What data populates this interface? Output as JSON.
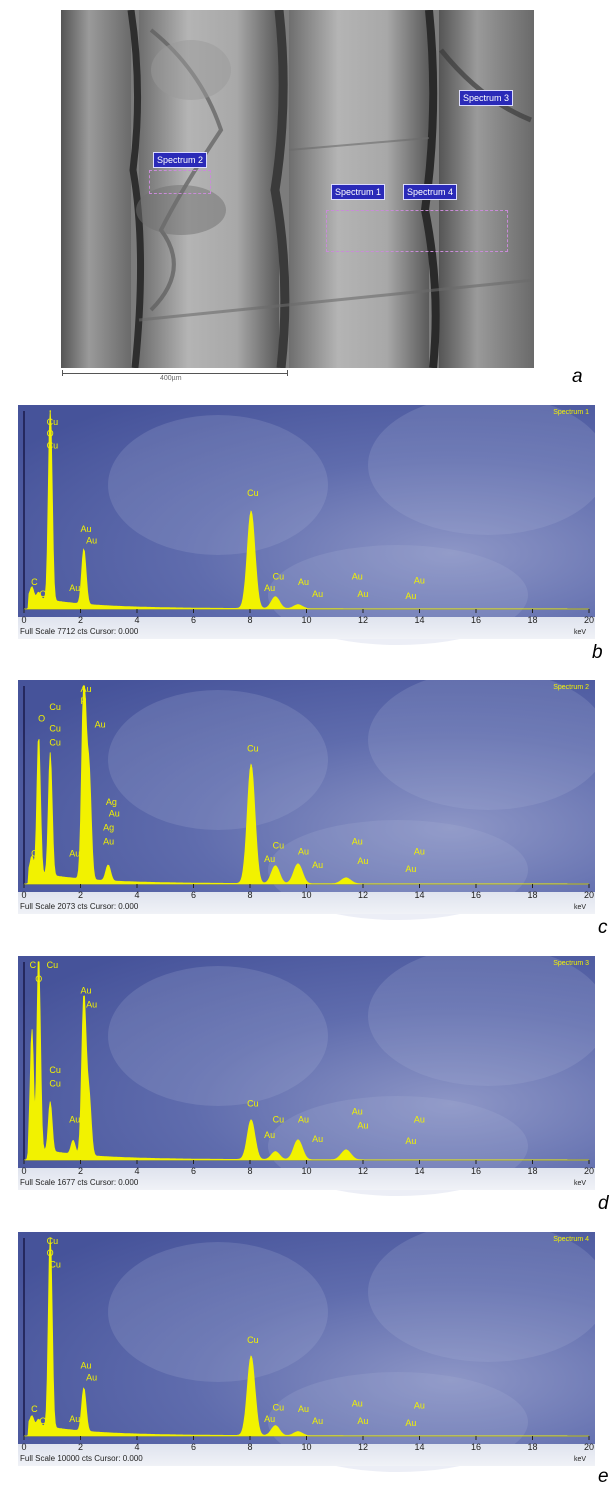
{
  "sem": {
    "labels": [
      "Spectrum 1",
      "Spectrum 2",
      "Spectrum 3",
      "Spectrum 4"
    ],
    "scale_label": "400µm",
    "panel": "a"
  },
  "chart_data": [
    {
      "type": "line",
      "panel": "b",
      "title": "Spectrum 1",
      "xlabel": "keV",
      "xlim": [
        0,
        20
      ],
      "x_ticks": [
        "0",
        "2",
        "4",
        "6",
        "8",
        "10",
        "12",
        "14",
        "16",
        "18",
        "20"
      ],
      "footer": "Full Scale 7712 cts Cursor: 0.000",
      "peaks": [
        {
          "x": 0.28,
          "y": 0.05
        },
        {
          "x": 0.52,
          "y": 0.03
        },
        {
          "x": 0.93,
          "y": 1.0
        },
        {
          "x": 2.12,
          "y": 0.28
        },
        {
          "x": 8.04,
          "y": 0.49
        },
        {
          "x": 8.9,
          "y": 0.06
        },
        {
          "x": 9.7,
          "y": 0.02
        }
      ],
      "annotations": [
        {
          "x": 0.8,
          "y": 0.93,
          "text": "Cu"
        },
        {
          "x": 0.8,
          "y": 0.87,
          "text": "O"
        },
        {
          "x": 0.8,
          "y": 0.81,
          "text": "Cu"
        },
        {
          "x": 2.0,
          "y": 0.39,
          "text": "Au"
        },
        {
          "x": 2.2,
          "y": 0.33,
          "text": "Au"
        },
        {
          "x": 1.6,
          "y": 0.09,
          "text": "Au"
        },
        {
          "x": 0.25,
          "y": 0.12,
          "text": "C"
        },
        {
          "x": 0.55,
          "y": 0.06,
          "text": "O"
        },
        {
          "x": 7.9,
          "y": 0.57,
          "text": "Cu"
        },
        {
          "x": 8.8,
          "y": 0.15,
          "text": "Cu"
        },
        {
          "x": 8.5,
          "y": 0.09,
          "text": "Au"
        },
        {
          "x": 9.7,
          "y": 0.12,
          "text": "Au"
        },
        {
          "x": 10.2,
          "y": 0.06,
          "text": "Au"
        },
        {
          "x": 11.6,
          "y": 0.15,
          "text": "Au"
        },
        {
          "x": 11.8,
          "y": 0.06,
          "text": "Au"
        },
        {
          "x": 13.8,
          "y": 0.13,
          "text": "Au"
        },
        {
          "x": 13.5,
          "y": 0.05,
          "text": "Au"
        }
      ]
    },
    {
      "type": "line",
      "panel": "c",
      "title": "Spectrum 2",
      "xlabel": "keV",
      "xlim": [
        0,
        20
      ],
      "x_ticks": [
        "0",
        "2",
        "4",
        "6",
        "8",
        "10",
        "12",
        "14",
        "16",
        "18",
        "20"
      ],
      "footer": "Full Scale 2073 cts Cursor: 0.000",
      "peaks": [
        {
          "x": 0.28,
          "y": 0.08
        },
        {
          "x": 0.52,
          "y": 0.7
        },
        {
          "x": 0.93,
          "y": 0.62
        },
        {
          "x": 2.12,
          "y": 1.0
        },
        {
          "x": 2.3,
          "y": 0.55
        },
        {
          "x": 2.98,
          "y": 0.08
        },
        {
          "x": 8.04,
          "y": 0.6
        },
        {
          "x": 8.9,
          "y": 0.09
        },
        {
          "x": 9.7,
          "y": 0.1
        },
        {
          "x": 11.4,
          "y": 0.03
        }
      ],
      "annotations": [
        {
          "x": 2.0,
          "y": 0.97,
          "text": "Au"
        },
        {
          "x": 2.0,
          "y": 0.91,
          "text": "P"
        },
        {
          "x": 0.9,
          "y": 0.88,
          "text": "Cu"
        },
        {
          "x": 0.5,
          "y": 0.82,
          "text": "O"
        },
        {
          "x": 0.9,
          "y": 0.77,
          "text": "Cu"
        },
        {
          "x": 0.9,
          "y": 0.7,
          "text": "Cu"
        },
        {
          "x": 2.5,
          "y": 0.79,
          "text": "Au"
        },
        {
          "x": 2.9,
          "y": 0.4,
          "text": "Ag"
        },
        {
          "x": 3.0,
          "y": 0.34,
          "text": "Au"
        },
        {
          "x": 2.8,
          "y": 0.27,
          "text": "Ag"
        },
        {
          "x": 2.8,
          "y": 0.2,
          "text": "Au"
        },
        {
          "x": 1.6,
          "y": 0.14,
          "text": "Au"
        },
        {
          "x": 0.25,
          "y": 0.14,
          "text": "C"
        },
        {
          "x": 7.9,
          "y": 0.67,
          "text": "Cu"
        },
        {
          "x": 8.8,
          "y": 0.18,
          "text": "Cu"
        },
        {
          "x": 8.5,
          "y": 0.11,
          "text": "Au"
        },
        {
          "x": 9.7,
          "y": 0.15,
          "text": "Au"
        },
        {
          "x": 10.2,
          "y": 0.08,
          "text": "Au"
        },
        {
          "x": 11.6,
          "y": 0.2,
          "text": "Au"
        },
        {
          "x": 11.8,
          "y": 0.1,
          "text": "Au"
        },
        {
          "x": 13.8,
          "y": 0.15,
          "text": "Au"
        },
        {
          "x": 13.5,
          "y": 0.06,
          "text": "Au"
        }
      ]
    },
    {
      "type": "line",
      "panel": "d",
      "title": "Spectrum 3",
      "xlabel": "keV",
      "xlim": [
        0,
        20
      ],
      "x_ticks": [
        "0",
        "2",
        "4",
        "6",
        "8",
        "10",
        "12",
        "14",
        "16",
        "18",
        "20"
      ],
      "footer": "Full Scale 1677 cts Cursor: 0.000",
      "peaks": [
        {
          "x": 0.28,
          "y": 0.6
        },
        {
          "x": 0.52,
          "y": 1.0
        },
        {
          "x": 0.93,
          "y": 0.25
        },
        {
          "x": 1.74,
          "y": 0.07
        },
        {
          "x": 2.12,
          "y": 0.8
        },
        {
          "x": 2.3,
          "y": 0.3
        },
        {
          "x": 8.04,
          "y": 0.2
        },
        {
          "x": 8.9,
          "y": 0.04
        },
        {
          "x": 9.7,
          "y": 0.1
        },
        {
          "x": 11.4,
          "y": 0.05
        }
      ],
      "annotations": [
        {
          "x": 0.2,
          "y": 0.97,
          "text": "C"
        },
        {
          "x": 0.8,
          "y": 0.97,
          "text": "Cu"
        },
        {
          "x": 0.4,
          "y": 0.9,
          "text": "O"
        },
        {
          "x": 2.0,
          "y": 0.84,
          "text": "Au"
        },
        {
          "x": 2.2,
          "y": 0.77,
          "text": "Au"
        },
        {
          "x": 0.9,
          "y": 0.44,
          "text": "Cu"
        },
        {
          "x": 0.9,
          "y": 0.37,
          "text": "Cu"
        },
        {
          "x": 1.6,
          "y": 0.19,
          "text": "Au"
        },
        {
          "x": 7.9,
          "y": 0.27,
          "text": "Cu"
        },
        {
          "x": 8.8,
          "y": 0.19,
          "text": "Cu"
        },
        {
          "x": 8.5,
          "y": 0.11,
          "text": "Au"
        },
        {
          "x": 9.7,
          "y": 0.19,
          "text": "Au"
        },
        {
          "x": 10.2,
          "y": 0.09,
          "text": "Au"
        },
        {
          "x": 11.6,
          "y": 0.23,
          "text": "Au"
        },
        {
          "x": 11.8,
          "y": 0.16,
          "text": "Au"
        },
        {
          "x": 13.8,
          "y": 0.19,
          "text": "Au"
        },
        {
          "x": 13.5,
          "y": 0.08,
          "text": "Au"
        }
      ]
    },
    {
      "type": "line",
      "panel": "e",
      "title": "Spectrum 4",
      "xlabel": "keV",
      "xlim": [
        0,
        20
      ],
      "x_ticks": [
        "0",
        "2",
        "4",
        "6",
        "8",
        "10",
        "12",
        "14",
        "16",
        "18",
        "20"
      ],
      "footer": "Full Scale 10000 cts Cursor: 0.000",
      "peaks": [
        {
          "x": 0.28,
          "y": 0.04
        },
        {
          "x": 0.52,
          "y": 0.03
        },
        {
          "x": 0.93,
          "y": 1.0
        },
        {
          "x": 2.12,
          "y": 0.22
        },
        {
          "x": 8.04,
          "y": 0.4
        },
        {
          "x": 8.9,
          "y": 0.05
        },
        {
          "x": 9.7,
          "y": 0.02
        }
      ],
      "annotations": [
        {
          "x": 0.8,
          "y": 0.97,
          "text": "Cu"
        },
        {
          "x": 0.8,
          "y": 0.91,
          "text": "O"
        },
        {
          "x": 0.9,
          "y": 0.85,
          "text": "Cu"
        },
        {
          "x": 2.0,
          "y": 0.34,
          "text": "Au"
        },
        {
          "x": 2.2,
          "y": 0.28,
          "text": "Au"
        },
        {
          "x": 1.6,
          "y": 0.07,
          "text": "Au"
        },
        {
          "x": 0.25,
          "y": 0.12,
          "text": "C"
        },
        {
          "x": 0.55,
          "y": 0.06,
          "text": "O"
        },
        {
          "x": 7.9,
          "y": 0.47,
          "text": "Cu"
        },
        {
          "x": 8.8,
          "y": 0.13,
          "text": "Cu"
        },
        {
          "x": 8.5,
          "y": 0.07,
          "text": "Au"
        },
        {
          "x": 9.7,
          "y": 0.12,
          "text": "Au"
        },
        {
          "x": 10.2,
          "y": 0.06,
          "text": "Au"
        },
        {
          "x": 11.6,
          "y": 0.15,
          "text": "Au"
        },
        {
          "x": 11.8,
          "y": 0.06,
          "text": "Au"
        },
        {
          "x": 13.8,
          "y": 0.14,
          "text": "Au"
        },
        {
          "x": 13.5,
          "y": 0.05,
          "text": "Au"
        }
      ]
    }
  ],
  "colors": {
    "spectrum_fill": "#f2f200",
    "plot_bg": "#4a5aa0",
    "sem_label_bg": "#2a2ab8"
  }
}
